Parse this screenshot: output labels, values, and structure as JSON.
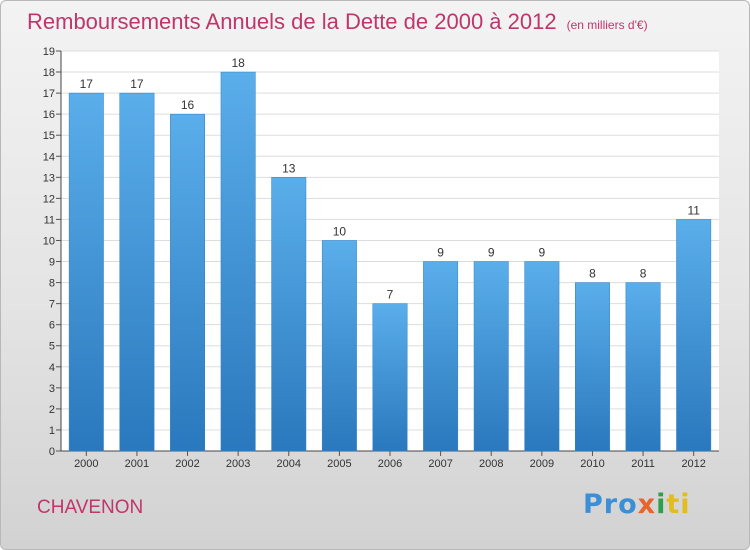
{
  "chart_data": {
    "type": "bar",
    "title": "Remboursements Annuels de la Dette de 2000 à 2012",
    "subtitle": "(en milliers d'€)",
    "categories": [
      "2000",
      "2001",
      "2002",
      "2003",
      "2004",
      "2005",
      "2006",
      "2007",
      "2008",
      "2009",
      "2010",
      "2011",
      "2012"
    ],
    "values": [
      17,
      17,
      16,
      18,
      13,
      10,
      7,
      9,
      9,
      9,
      8,
      8,
      11
    ],
    "ylim": [
      0,
      19
    ],
    "yticks": [
      0,
      1,
      2,
      3,
      4,
      5,
      6,
      7,
      8,
      9,
      10,
      11,
      12,
      13,
      14,
      15,
      16,
      17,
      18,
      19
    ],
    "xlabel": "",
    "ylabel": "",
    "grid": true,
    "bar_color": "#4a9be0"
  },
  "footer": {
    "place": "CHAVENON",
    "brand": [
      "Pro",
      "x",
      "i",
      "ti"
    ]
  }
}
